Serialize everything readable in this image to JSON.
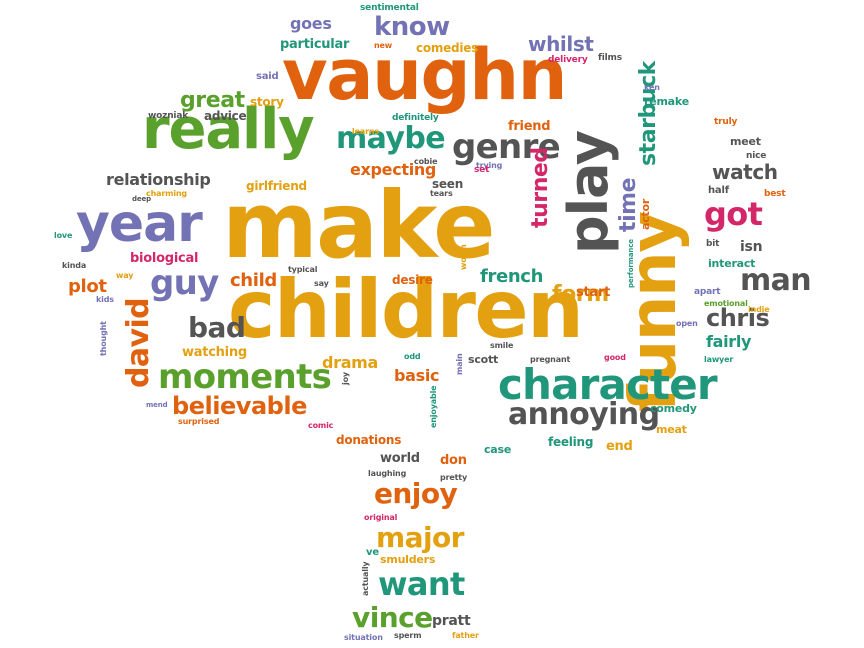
{
  "colors": {
    "orange": "#e0620e",
    "yellow": "#e3a010",
    "green": "#5aa02c",
    "purple": "#7372b4",
    "gray": "#545454",
    "teal": "#20967a",
    "pink": "#d4276a"
  },
  "words": [
    {
      "text": "make",
      "color": "yellow"
    },
    {
      "text": "children",
      "color": "yellow"
    },
    {
      "text": "vaughn",
      "color": "orange"
    },
    {
      "text": "funny",
      "color": "yellow"
    },
    {
      "text": "play",
      "color": "gray"
    },
    {
      "text": "really",
      "color": "green"
    },
    {
      "text": "year",
      "color": "purple"
    },
    {
      "text": "character",
      "color": "teal"
    },
    {
      "text": "genre",
      "color": "gray"
    },
    {
      "text": "maybe",
      "color": "teal"
    },
    {
      "text": "moments",
      "color": "green"
    },
    {
      "text": "annoying",
      "color": "gray"
    },
    {
      "text": "guy",
      "color": "purple"
    },
    {
      "text": "got",
      "color": "pink"
    },
    {
      "text": "man",
      "color": "gray"
    },
    {
      "text": "know",
      "color": "purple"
    },
    {
      "text": "david",
      "color": "orange"
    },
    {
      "text": "bad",
      "color": "gray"
    },
    {
      "text": "enjoy",
      "color": "orange"
    },
    {
      "text": "want",
      "color": "teal"
    },
    {
      "text": "major",
      "color": "yellow"
    },
    {
      "text": "vince",
      "color": "green"
    },
    {
      "text": "believable",
      "color": "orange"
    },
    {
      "text": "form",
      "color": "yellow"
    },
    {
      "text": "chris",
      "color": "gray"
    },
    {
      "text": "time",
      "color": "purple"
    },
    {
      "text": "starbuck",
      "color": "teal"
    },
    {
      "text": "turned",
      "color": "pink"
    },
    {
      "text": "watch",
      "color": "gray"
    },
    {
      "text": "great",
      "color": "green"
    },
    {
      "text": "whilst",
      "color": "purple"
    },
    {
      "text": "relationship",
      "color": "gray"
    },
    {
      "text": "expecting",
      "color": "orange"
    },
    {
      "text": "french",
      "color": "teal"
    },
    {
      "text": "plot",
      "color": "orange"
    },
    {
      "text": "child",
      "color": "orange"
    },
    {
      "text": "drama",
      "color": "yellow"
    },
    {
      "text": "basic",
      "color": "orange"
    },
    {
      "text": "fairly",
      "color": "teal"
    },
    {
      "text": "goes",
      "color": "purple"
    },
    {
      "text": "particular",
      "color": "teal"
    },
    {
      "text": "story",
      "color": "yellow"
    },
    {
      "text": "advice",
      "color": "gray"
    },
    {
      "text": "comedies",
      "color": "yellow"
    },
    {
      "text": "remake",
      "color": "teal"
    },
    {
      "text": "friend",
      "color": "orange"
    },
    {
      "text": "biological",
      "color": "pink"
    },
    {
      "text": "watching",
      "color": "yellow"
    },
    {
      "text": "girlfriend",
      "color": "yellow"
    },
    {
      "text": "seen",
      "color": "gray"
    },
    {
      "text": "desire",
      "color": "orange"
    },
    {
      "text": "start",
      "color": "orange"
    },
    {
      "text": "donations",
      "color": "orange"
    },
    {
      "text": "world",
      "color": "gray"
    },
    {
      "text": "don",
      "color": "orange"
    },
    {
      "text": "feeling",
      "color": "teal"
    },
    {
      "text": "end",
      "color": "yellow"
    },
    {
      "text": "case",
      "color": "teal"
    },
    {
      "text": "pratt",
      "color": "gray"
    },
    {
      "text": "isn",
      "color": "gray"
    },
    {
      "text": "meet",
      "color": "gray"
    },
    {
      "text": "interact",
      "color": "teal"
    },
    {
      "text": "comedy",
      "color": "teal"
    },
    {
      "text": "meat",
      "color": "yellow"
    },
    {
      "text": "smulders",
      "color": "yellow"
    },
    {
      "text": "ve",
      "color": "teal"
    },
    {
      "text": "actor",
      "color": "orange"
    },
    {
      "text": "scott",
      "color": "gray"
    },
    {
      "text": "said",
      "color": "purple"
    },
    {
      "text": "definitely",
      "color": "teal"
    },
    {
      "text": "learns",
      "color": "yellow"
    },
    {
      "text": "wozniak",
      "color": "gray"
    },
    {
      "text": "new",
      "color": "orange"
    },
    {
      "text": "sentimental",
      "color": "teal"
    },
    {
      "text": "films",
      "color": "gray"
    },
    {
      "text": "delivery",
      "color": "pink"
    },
    {
      "text": "ken",
      "color": "purple"
    },
    {
      "text": "truly",
      "color": "orange"
    },
    {
      "text": "nice",
      "color": "gray"
    },
    {
      "text": "half",
      "color": "gray"
    },
    {
      "text": "best",
      "color": "orange"
    },
    {
      "text": "bit",
      "color": "gray"
    },
    {
      "text": "apart",
      "color": "purple"
    },
    {
      "text": "emotional",
      "color": "green"
    },
    {
      "text": "indie",
      "color": "yellow"
    },
    {
      "text": "open",
      "color": "purple"
    },
    {
      "text": "lawyer",
      "color": "teal"
    },
    {
      "text": "good",
      "color": "pink"
    },
    {
      "text": "pregnant",
      "color": "gray"
    },
    {
      "text": "smile",
      "color": "gray"
    },
    {
      "text": "odd",
      "color": "teal"
    },
    {
      "text": "main",
      "color": "purple"
    },
    {
      "text": "joy",
      "color": "gray"
    },
    {
      "text": "worth",
      "color": "yellow"
    },
    {
      "text": "typical",
      "color": "gray"
    },
    {
      "text": "say",
      "color": "gray"
    },
    {
      "text": "cobie",
      "color": "gray"
    },
    {
      "text": "trying",
      "color": "purple"
    },
    {
      "text": "set",
      "color": "pink"
    },
    {
      "text": "tears",
      "color": "gray"
    },
    {
      "text": "charming",
      "color": "yellow"
    },
    {
      "text": "deep",
      "color": "gray"
    },
    {
      "text": "love",
      "color": "teal"
    },
    {
      "text": "kinda",
      "color": "gray"
    },
    {
      "text": "way",
      "color": "yellow"
    },
    {
      "text": "kids",
      "color": "purple"
    },
    {
      "text": "thought",
      "color": "purple"
    },
    {
      "text": "mend",
      "color": "purple"
    },
    {
      "text": "surprised",
      "color": "orange"
    },
    {
      "text": "comic",
      "color": "pink"
    },
    {
      "text": "enjoyable",
      "color": "teal"
    },
    {
      "text": "performance",
      "color": "teal"
    },
    {
      "text": "laughing",
      "color": "gray"
    },
    {
      "text": "pretty",
      "color": "gray"
    },
    {
      "text": "original",
      "color": "pink"
    },
    {
      "text": "actually",
      "color": "gray"
    },
    {
      "text": "situation",
      "color": "purple"
    },
    {
      "text": "sperm",
      "color": "gray"
    },
    {
      "text": "father",
      "color": "yellow"
    }
  ]
}
